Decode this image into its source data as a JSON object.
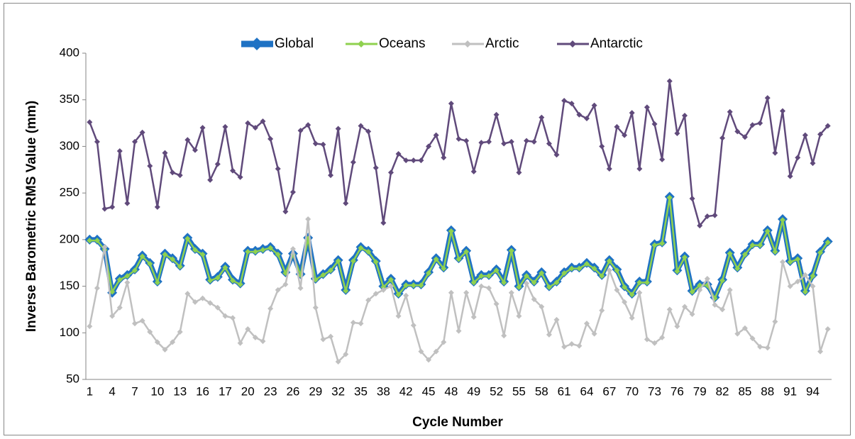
{
  "chart_data": {
    "type": "line",
    "x_label": "Cycle Number",
    "y_label": "Inverse Barometric RMS Value (mm)",
    "categories": [
      1,
      null,
      null,
      4,
      null,
      null,
      7,
      null,
      null,
      10,
      null,
      null,
      13,
      null,
      null,
      16,
      null,
      null,
      17,
      null,
      null,
      20,
      null,
      null,
      23,
      null,
      null,
      26,
      null,
      null,
      29,
      null,
      null,
      32,
      null,
      null,
      35,
      null,
      null,
      38,
      null,
      null,
      42,
      null,
      null,
      45,
      null,
      null,
      48,
      null,
      null,
      49,
      null,
      null,
      52,
      null,
      null,
      55,
      null,
      null,
      58,
      null,
      null,
      61,
      null,
      null,
      64,
      null,
      null,
      67,
      null,
      null,
      70,
      null,
      null,
      73,
      null,
      null,
      76,
      null,
      null,
      79,
      null,
      null,
      82,
      null,
      null,
      85,
      null,
      null,
      88,
      null,
      null,
      91,
      null,
      null,
      94,
      null,
      null
    ],
    "series": [
      {
        "name": "Global",
        "color": "#1f72c4",
        "values": [
          200,
          200,
          190,
          143,
          158,
          162,
          168,
          183,
          175,
          155,
          185,
          180,
          172,
          202,
          190,
          185,
          157,
          160,
          171,
          157,
          153,
          188,
          188,
          190,
          192,
          185,
          165,
          185,
          163,
          202,
          158,
          163,
          168,
          178,
          146,
          178,
          192,
          188,
          177,
          150,
          158,
          142,
          152,
          152,
          152,
          165,
          180,
          170,
          210,
          180,
          188,
          155,
          162,
          162,
          168,
          155,
          189,
          150,
          162,
          155,
          165,
          150,
          155,
          165,
          170,
          170,
          175,
          170,
          162,
          178,
          168,
          150,
          142,
          155,
          155,
          195,
          197,
          246,
          167,
          182,
          145,
          152,
          152,
          138,
          157,
          186,
          170,
          185,
          195,
          195,
          210,
          188,
          222,
          177,
          180,
          145,
          162,
          187,
          198
        ]
      },
      {
        "name": "Oceans",
        "color": "#8fd14f",
        "values": [
          199,
          199,
          189,
          144,
          157,
          161,
          167,
          182,
          174,
          154,
          184,
          179,
          171,
          201,
          189,
          184,
          156,
          159,
          170,
          156,
          152,
          187,
          187,
          189,
          191,
          184,
          164,
          184,
          162,
          201,
          157,
          162,
          167,
          177,
          145,
          177,
          191,
          187,
          176,
          149,
          157,
          141,
          151,
          151,
          151,
          164,
          179,
          169,
          209,
          179,
          187,
          154,
          161,
          161,
          167,
          154,
          188,
          149,
          161,
          154,
          164,
          149,
          154,
          164,
          169,
          169,
          174,
          169,
          161,
          177,
          167,
          149,
          141,
          154,
          154,
          194,
          196,
          245,
          166,
          181,
          144,
          151,
          151,
          137,
          156,
          185,
          169,
          184,
          194,
          194,
          209,
          187,
          221,
          176,
          179,
          144,
          161,
          186,
          197
        ]
      },
      {
        "name": "Arctic",
        "color": "#c0c0c0",
        "values": [
          107,
          148,
          192,
          118,
          127,
          154,
          110,
          113,
          101,
          90,
          82,
          90,
          101,
          142,
          133,
          137,
          132,
          127,
          118,
          116,
          89,
          104,
          95,
          91,
          126,
          146,
          152,
          190,
          148,
          222,
          127,
          93,
          96,
          69,
          77,
          111,
          110,
          135,
          142,
          146,
          150,
          118,
          140,
          108,
          80,
          71,
          80,
          90,
          143,
          102,
          143,
          117,
          150,
          148,
          131,
          97,
          143,
          118,
          153,
          136,
          128,
          98,
          114,
          85,
          88,
          86,
          110,
          99,
          124,
          167,
          146,
          133,
          116,
          143,
          93,
          89,
          95,
          125,
          107,
          128,
          120,
          146,
          158,
          130,
          125,
          146,
          99,
          105,
          94,
          85,
          84,
          112,
          176,
          150,
          155,
          162,
          150,
          80,
          104
        ]
      },
      {
        "name": "Antarctic",
        "color": "#604a7b",
        "values": [
          326,
          305,
          233,
          235,
          295,
          239,
          305,
          315,
          279,
          235,
          293,
          272,
          269,
          307,
          296,
          320,
          264,
          281,
          321,
          274,
          267,
          325,
          320,
          327,
          308,
          276,
          230,
          251,
          317,
          323,
          303,
          302,
          269,
          319,
          239,
          283,
          322,
          316,
          277,
          218,
          272,
          292,
          285,
          285,
          285,
          300,
          312,
          288,
          346,
          308,
          306,
          273,
          304,
          305,
          334,
          303,
          305,
          272,
          306,
          305,
          331,
          303,
          291,
          349,
          346,
          334,
          330,
          344,
          300,
          276,
          321,
          312,
          336,
          276,
          342,
          324,
          286,
          370,
          314,
          333,
          244,
          215,
          225,
          226,
          309,
          337,
          316,
          310,
          323,
          325,
          352,
          293,
          338,
          268,
          288,
          312,
          282,
          313,
          322
        ]
      }
    ],
    "ylim": [
      50,
      400
    ],
    "yticks": [
      50,
      100,
      150,
      200,
      250,
      300,
      350,
      400
    ],
    "grid": false,
    "legend": "top"
  }
}
